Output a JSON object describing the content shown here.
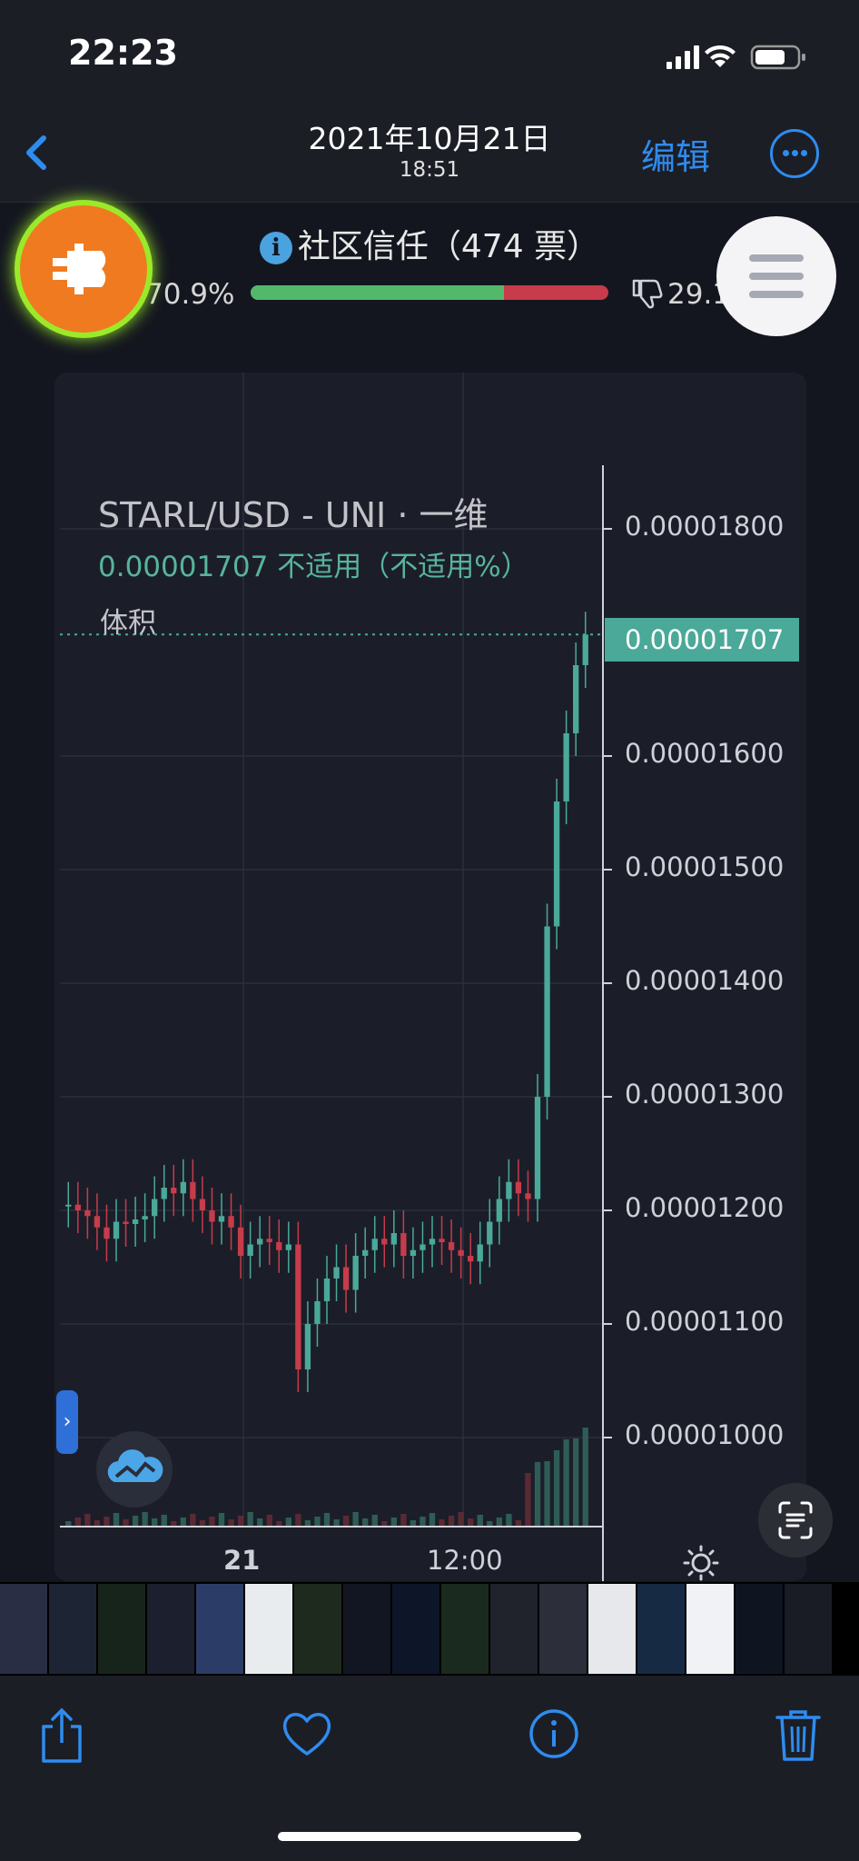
{
  "status_bar": {
    "time": "22:23"
  },
  "nav": {
    "date": "2021年10月21日",
    "time": "18:51",
    "edit_label": "编辑"
  },
  "trust": {
    "title": "社区信任（474 票）",
    "positive_pct": "70.9%",
    "negative_pct": "29.1",
    "positive_fraction": 0.709
  },
  "chart": {
    "pair_label": "STARL/USD - UNI · 一维",
    "quote_line": "0.00001707  不适用（不适用%）",
    "volume_label": "体积",
    "last_price": "0.00001707",
    "y_ticks": [
      "0.00001800",
      "0.00001600",
      "0.00001500",
      "0.00001400",
      "0.00001300",
      "0.00001200",
      "0.00001100",
      "0.00001000"
    ],
    "x_ticks": [
      "21",
      "12:00"
    ]
  },
  "chart_data": {
    "type": "line",
    "title": "STARL/USD - UNI",
    "ylim": [
      9.8e-06,
      1.9e-05
    ],
    "x_labels": [
      "21",
      "12:00"
    ],
    "last": 1.707e-05,
    "series": [
      {
        "values": [
          1.205e-05,
          1.2e-05,
          1.195e-05,
          1.185e-05,
          1.175e-05,
          1.19e-05,
          1.188e-05,
          1.192e-05,
          1.195e-05,
          1.21e-05,
          1.22e-05,
          1.215e-05,
          1.225e-05,
          1.21e-05,
          1.2e-05,
          1.19e-05,
          1.195e-05,
          1.185e-05,
          1.16e-05,
          1.17e-05,
          1.175e-05,
          1.172e-05,
          1.165e-05,
          1.17e-05,
          1.06e-05,
          1.1e-05,
          1.12e-05,
          1.14e-05,
          1.15e-05,
          1.13e-05,
          1.16e-05,
          1.165e-05,
          1.175e-05,
          1.17e-05,
          1.18e-05,
          1.16e-05,
          1.165e-05,
          1.17e-05,
          1.175e-05,
          1.172e-05,
          1.165e-05,
          1.16e-05,
          1.155e-05,
          1.17e-05,
          1.19e-05,
          1.21e-05,
          1.225e-05,
          1.215e-05,
          1.21e-05,
          1.3e-05,
          1.45e-05,
          1.56e-05,
          1.62e-05,
          1.68e-05,
          1.707e-05
        ]
      }
    ]
  },
  "toolbar": {
    "share": "share-icon",
    "like": "heart-icon",
    "info": "info-icon",
    "delete": "trash-icon"
  },
  "colors": {
    "accent": "#2e8cf0",
    "up": "#4aa999",
    "down": "#c83b4a",
    "bar_green": "#52b96b"
  }
}
